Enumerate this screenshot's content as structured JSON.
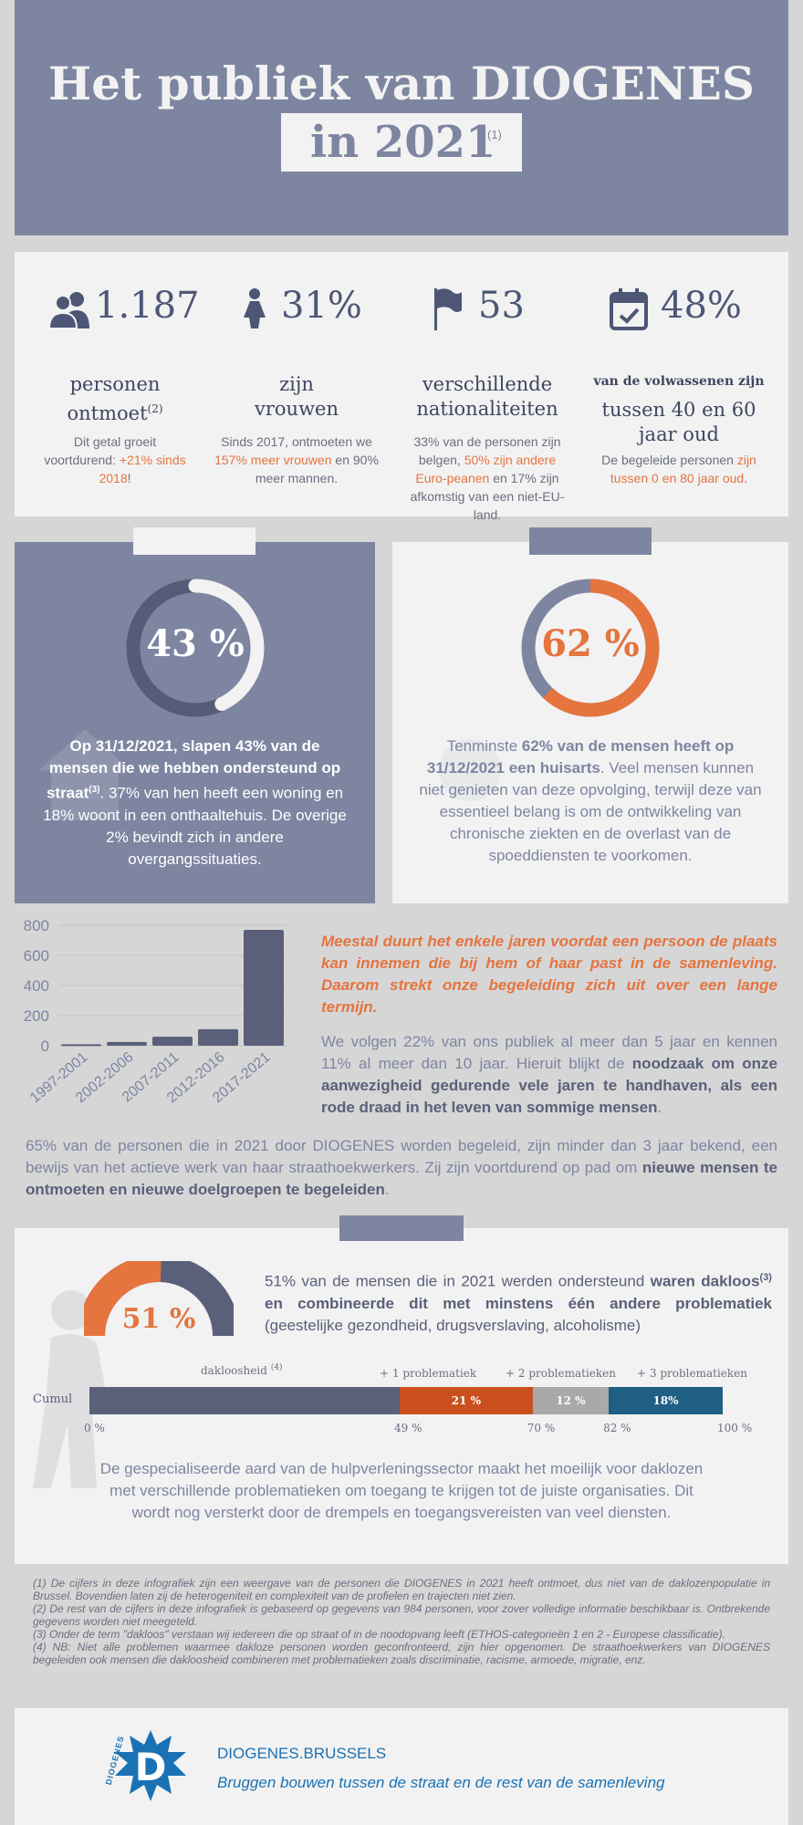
{
  "header": {
    "title_line1": "Het publiek van DIOGENES",
    "title_line2": "in 2021",
    "title_note": "(1)"
  },
  "stats": [
    {
      "icon": "people-icon",
      "value": "1.187",
      "title_a": "personen",
      "title_b": "ontmoet",
      "title_sup": "(2)",
      "body_a": "Dit getal groeit voortdurend: ",
      "body_highlight": "+21% sinds 2018",
      "body_b": "!"
    },
    {
      "icon": "woman-icon",
      "value": "31%",
      "title_a": "zijn",
      "title_b": "vrouwen",
      "body_a": "Sinds 2017, ontmoeten we ",
      "body_highlight": "157% meer vrouwen",
      "body_b": " en 90% meer mannen."
    },
    {
      "icon": "flag-icon",
      "value": "53",
      "title_a": "verschillende",
      "title_b": "nationaliteiten",
      "body_a": "33% van de personen zijn belgen, ",
      "body_highlight": "50% zijn andere Euro-peanen",
      "body_b": " en 17% zijn afkomstig van een niet-EU-land."
    },
    {
      "icon": "calendar-icon",
      "value": "48%",
      "title_small": "van de volwassenen zijn",
      "title_a": "tussen 40 en 60",
      "title_b": "jaar oud",
      "body_a": "De begeleide personen ",
      "body_highlight": "zijn tussen 0 en 80 jaar oud",
      "body_b": "."
    }
  ],
  "donut_street": {
    "percent": 43,
    "label": "43 %",
    "text_bold": "Op 31/12/2021, slapen 43% van de mensen die we hebben ondersteund op straat",
    "text_sup": "(3)",
    "text_rest": ". 37% van hen heeft een woning en 18% woont in een onthaaltehuis. De overige 2% bevindt zich in andere overgangssituaties.",
    "colors": {
      "track": "#555c78",
      "fill": "#f2f2f2"
    }
  },
  "donut_doctor": {
    "percent": 62,
    "label": "62 %",
    "text_a": "Tenminste ",
    "text_bold": "62% van de mensen heeft op 31/12/2021 een huisarts",
    "text_rest": ". Veel mensen kunnen niet genieten van deze opvolging, terwijl deze van essentieel belang is om de ontwikkeling van chronische ziekten en de overlast van de spoeddiensten te voorkomen.",
    "colors": {
      "track": "#7d85a1",
      "fill": "#e5743f"
    }
  },
  "chart_data": {
    "type": "bar",
    "categories": [
      "1997-2001",
      "2002-2006",
      "2007-2011",
      "2012-2016",
      "2017-2021"
    ],
    "values": [
      10,
      25,
      60,
      110,
      770
    ],
    "ylim": [
      0,
      800
    ],
    "yticks": [
      "800",
      "600",
      "400",
      "200",
      "0"
    ],
    "grid": true,
    "color": "#5a6079"
  },
  "duration": {
    "highlight": "Meestal duurt het enkele jaren voordat een persoon de plaats kan innemen die bij hem of haar past in de samenleving. Daarom strekt onze begeleiding zich uit over een lange termijn.",
    "text_a": "We volgen 22% van ons publiek al meer dan 5 jaar en kennen 11% al meer dan 10 jaar. Hieruit blijkt de ",
    "text_bold": "noodzaak om onze aanwezigheid gedurende vele jaren te handhaven, als een rode draad in het leven van sommige mensen",
    "text_b": ".",
    "full_a": "65% van de personen die in 2021 door DIOGENES worden begeleid, zijn minder dan 3 jaar bekend, een bewijs van het actieve werk van haar straathoekwerkers. Zij zijn voortdurend op pad om ",
    "full_bold": "nieuwe mensen te ontmoeten en nieuwe doelgroepen te begeleiden",
    "full_b": "."
  },
  "problems": {
    "gauge_label": "51 %",
    "gauge_percent": 51,
    "text_a": "51% van de mensen die in 2021 werden ondersteund ",
    "text_bold1": "waren dakloos",
    "text_sup": "(3)",
    "text_bold2": " en combineerde dit met minstens één andere problematiek",
    "text_b": " (geestelijke gezondheid, drugsverslaving, alcoholisme)",
    "bar_label": "Cumul",
    "segment_labels": [
      "dakloosheid",
      "+ 1 problematiek",
      "+ 2 problematieken",
      "+ 3 problematieken"
    ],
    "segment_sup": "(4)",
    "segments": [
      {
        "value": 49,
        "label": "",
        "color": "#5a6079"
      },
      {
        "value": 21,
        "label": "21 %",
        "color": "#c9501e"
      },
      {
        "value": 12,
        "label": "12 %",
        "color": "#a9a9a9"
      },
      {
        "value": 18,
        "label": "18%",
        "color": "#1f5f84"
      }
    ],
    "cumul_ticks": [
      "0 %",
      "49 %",
      "70 %",
      "82 %",
      "100 %"
    ],
    "conclusion": "De gespecialiseerde aard van de hulpverleningssector maakt het moeilijk voor daklozen met verschillende problematieken om toegang te krijgen tot de juiste organisaties. Dit wordt nog versterkt door de drempels en toegangsvereisten van veel diensten."
  },
  "footnotes": [
    "(1) De cijfers in deze infografiek zijn een weergave van de personen die DIOGENES in 2021 heeft ontmoet, dus niet van de daklozenpopulatie in Brussel. Bovendien laten zij de heterogeniteit en complexiteit van de profielen en trajecten niet zien.",
    "(2) De rest van de cijfers in deze infografiek is gebaseerd op gegevens van 984 personen, voor zover volledige informatie beschikbaar is. Ontbrekende gegevens worden niet meegeteld.",
    "(3) Onder de term \"dakloos\" verstaan wij iedereen die op straat of in de noodopvang leeft (ETHOS-categorieën 1 en 2 - Europese classificatie).",
    "(4) NB: Niet alle problemen waarmee dakloze personen worden geconfronteerd, zijn hier opgenomen. De straathoekwerkers van DIOGENES begeleiden ook mensen die dakloosheid combineren met problematieken zoals discriminatie, racisme, armoede, migratie, enz."
  ],
  "footer": {
    "logo_text": "DIOGENES",
    "logo_letter": "D",
    "site": "DIOGENES.BRUSSELS",
    "tagline": "Bruggen bouwen tussen de straat en de rest van de samenleving"
  },
  "colors": {
    "slate": "#7d85a1",
    "orange": "#e5743f",
    "brand": "#1a72b5"
  }
}
